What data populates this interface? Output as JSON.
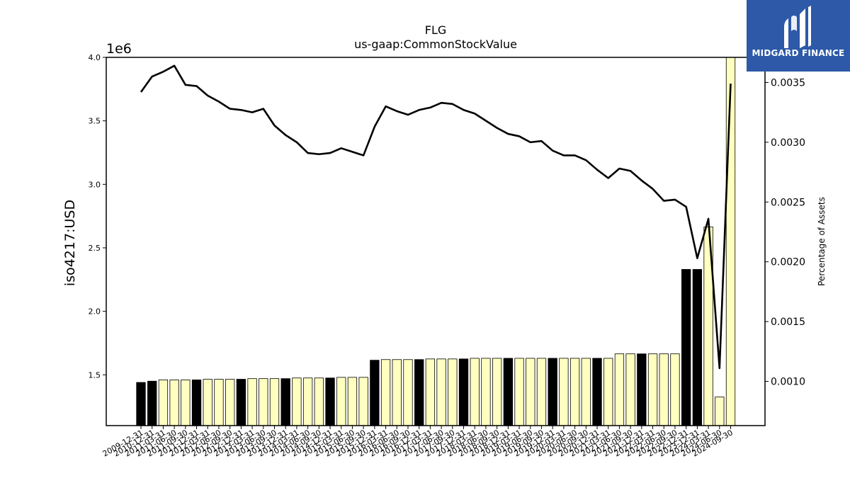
{
  "chart_data": {
    "type": "bar",
    "title": "FLG",
    "subtitle": "us-gaap:CommonStockValue",
    "ylabel": "iso4217:USD",
    "y_offset_label": "1e6",
    "y2label": "Percentage of Assets",
    "ylim": [
      1.1,
      4.0
    ],
    "y2lim": [
      0.00063,
      0.00371
    ],
    "y_ticks": [
      "1.5",
      "2.0",
      "2.5",
      "3.0",
      "3.5",
      "4.0"
    ],
    "y2_ticks": [
      "0.0010",
      "0.0015",
      "0.0020",
      "0.0025",
      "0.0030",
      "0.0035"
    ],
    "bar_colors": {
      "q4": "#000000",
      "other": "#ffffc0"
    },
    "line_color": "#000000",
    "categories": [
      "2009-12-31",
      "2010-12-31",
      "2011-03-31",
      "2011-06-30",
      "2011-09-30",
      "2011-12-31",
      "2012-03-31",
      "2012-06-30",
      "2012-09-30",
      "2012-12-31",
      "2013-03-31",
      "2013-06-30",
      "2013-09-30",
      "2013-12-31",
      "2014-03-31",
      "2014-06-30",
      "2014-09-30",
      "2014-12-31",
      "2015-03-31",
      "2015-06-30",
      "2015-09-30",
      "2015-12-31",
      "2016-03-31",
      "2016-06-30",
      "2016-09-30",
      "2016-12-31",
      "2017-03-31",
      "2017-06-30",
      "2017-09-30",
      "2017-12-31",
      "2018-03-31",
      "2018-06-30",
      "2018-09-30",
      "2018-12-31",
      "2019-03-31",
      "2019-06-30",
      "2019-09-30",
      "2019-12-31",
      "2020-03-31",
      "2020-06-30",
      "2020-09-30",
      "2020-12-31",
      "2021-03-31",
      "2021-06-30",
      "2021-09-30",
      "2021-12-31",
      "2022-03-31",
      "2022-06-30",
      "2022-09-30",
      "2022-12-31",
      "2023-12-31",
      "2024-03-31",
      "2024-06-30",
      "2024-09-30"
    ],
    "series": [
      {
        "values": [
          1.44,
          1.45,
          1.46,
          1.46,
          1.46,
          1.46,
          1.465,
          1.465,
          1.465,
          1.465,
          1.47,
          1.47,
          1.47,
          1.47,
          1.475,
          1.475,
          1.475,
          1.475,
          1.48,
          1.48,
          1.48,
          1.615,
          1.62,
          1.62,
          1.62,
          1.62,
          1.625,
          1.625,
          1.625,
          1.625,
          1.63,
          1.63,
          1.63,
          1.63,
          1.63,
          1.63,
          1.63,
          1.63,
          1.63,
          1.63,
          1.63,
          1.63,
          1.63,
          1.665,
          1.665,
          1.665,
          1.665,
          1.665,
          1.665,
          2.33,
          2.33,
          2.665,
          1.325,
          4.0
        ],
        "q4": [
          true,
          true,
          false,
          false,
          false,
          true,
          false,
          false,
          false,
          true,
          false,
          false,
          false,
          true,
          false,
          false,
          false,
          true,
          false,
          false,
          false,
          true,
          false,
          false,
          false,
          true,
          false,
          false,
          false,
          true,
          false,
          false,
          false,
          true,
          false,
          false,
          false,
          true,
          false,
          false,
          false,
          true,
          false,
          false,
          false,
          true,
          false,
          false,
          false,
          true,
          true,
          false,
          false,
          false
        ]
      },
      {
        "axis": "right",
        "values": [
          0.00342,
          0.00355,
          0.00359,
          0.00364,
          0.00348,
          0.00347,
          0.00339,
          0.00334,
          0.00328,
          0.00327,
          0.00325,
          0.00328,
          0.00314,
          0.00306,
          0.003,
          0.00291,
          0.0029,
          0.00291,
          0.00295,
          0.00292,
          0.00289,
          0.00313,
          0.0033,
          0.00326,
          0.00323,
          0.00327,
          0.00329,
          0.00333,
          0.00332,
          0.00327,
          0.00324,
          0.00318,
          0.00312,
          0.00307,
          0.00305,
          0.003,
          0.00301,
          0.00293,
          0.00289,
          0.00289,
          0.00285,
          0.00277,
          0.0027,
          0.00278,
          0.00276,
          0.00268,
          0.00261,
          0.00251,
          0.00252,
          0.00246,
          0.00203,
          0.00236,
          0.00111,
          0.00349
        ]
      }
    ]
  },
  "logo": {
    "text": "MIDGARD FINANCE"
  }
}
